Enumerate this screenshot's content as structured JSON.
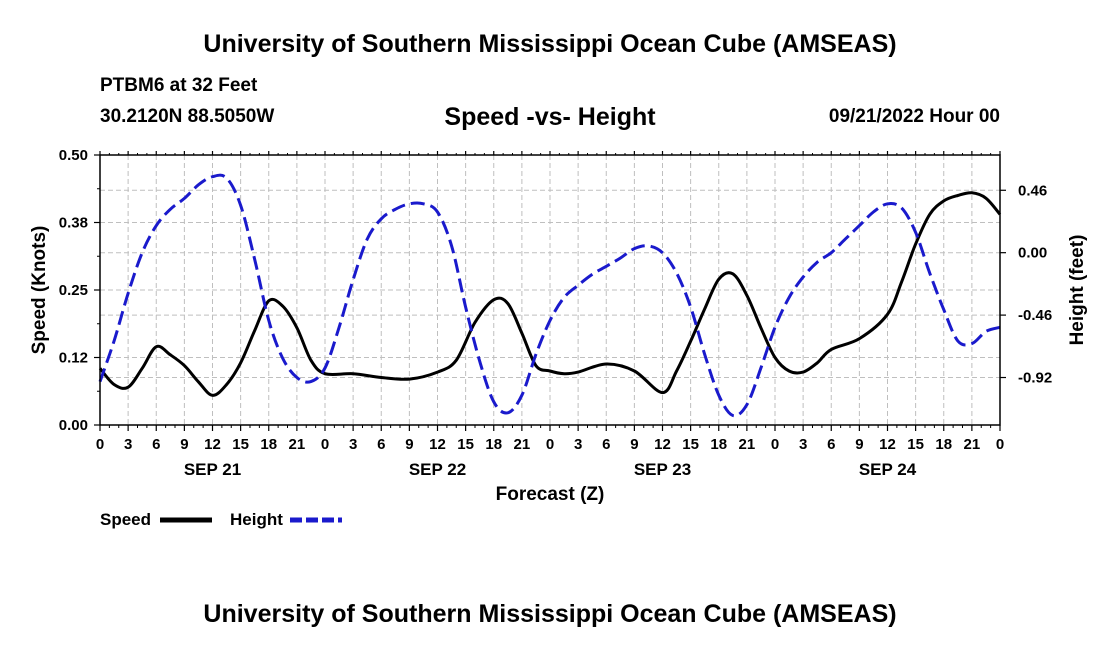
{
  "page": {
    "title_top": "University of Southern Mississippi Ocean Cube (AMSEAS)",
    "title_bottom": "University of Southern Mississippi Ocean Cube (AMSEAS)",
    "station": "PTBM6 at 32 Feet",
    "location": "30.2120N  88.5050W",
    "datetime": "09/21/2022 Hour 00"
  },
  "colors": {
    "speed": "#000000",
    "height": "#1a1acc",
    "grid": "#bfbfbf"
  },
  "chart_data": {
    "type": "line",
    "title": "Speed -vs- Height",
    "xlabel": "Forecast (Z)",
    "ylabel": "Speed (Knots)",
    "y2label": "Height (feet)",
    "x_unit": "hours since 09/21/2022 00Z",
    "xlim": [
      0,
      96
    ],
    "x_tick_step": 3,
    "x_tick_labels": [
      "0",
      "3",
      "6",
      "9",
      "12",
      "15",
      "18",
      "21",
      "0",
      "3",
      "6",
      "9",
      "12",
      "15",
      "18",
      "21",
      "0",
      "3",
      "6",
      "9",
      "12",
      "15",
      "18",
      "21",
      "0",
      "3",
      "6",
      "9",
      "12",
      "15",
      "18",
      "21",
      "0"
    ],
    "day_labels": [
      {
        "hour": 12,
        "label": "SEP 21"
      },
      {
        "hour": 36,
        "label": "SEP 22"
      },
      {
        "hour": 60,
        "label": "SEP 23"
      },
      {
        "hour": 84,
        "label": "SEP 24"
      }
    ],
    "ylim": [
      0,
      0.5
    ],
    "y_ticks": [
      0.0,
      0.125,
      0.25,
      0.375,
      0.5
    ],
    "y_tick_labels": [
      "0.00",
      "0.12",
      "0.25",
      "0.38",
      "0.50"
    ],
    "y2lim": [
      -1.27,
      0.72
    ],
    "y2_ticks": [
      0.46,
      0.0,
      -0.46,
      -0.92
    ],
    "y2_tick_labels": [
      "0.46",
      "0.00",
      "-0.46",
      "-0.92"
    ],
    "legend": [
      {
        "name": "Speed",
        "style": "solid"
      },
      {
        "name": "Height",
        "style": "dashed"
      }
    ],
    "series": [
      {
        "name": "Speed",
        "axis": "left",
        "style": "solid",
        "x": [
          0,
          1.5,
          3,
          4.5,
          6,
          7.5,
          9,
          10.5,
          12,
          13.5,
          15,
          16.5,
          18,
          19.5,
          21,
          22.5,
          24,
          27,
          30,
          33,
          36,
          38,
          40,
          42,
          43.5,
          45,
          46.5,
          48,
          49.5,
          51,
          54,
          57,
          60,
          61.5,
          63,
          64.5,
          66,
          67.5,
          69,
          70.5,
          72,
          73.5,
          75,
          76.5,
          78,
          81,
          84,
          85.5,
          87,
          88.5,
          90,
          91.5,
          93,
          94.5,
          96
        ],
        "y": [
          0.105,
          0.075,
          0.07,
          0.105,
          0.145,
          0.13,
          0.11,
          0.08,
          0.055,
          0.075,
          0.115,
          0.175,
          0.23,
          0.22,
          0.18,
          0.12,
          0.095,
          0.095,
          0.088,
          0.085,
          0.098,
          0.12,
          0.19,
          0.232,
          0.225,
          0.17,
          0.11,
          0.1,
          0.095,
          0.098,
          0.113,
          0.1,
          0.06,
          0.1,
          0.155,
          0.215,
          0.27,
          0.28,
          0.24,
          0.18,
          0.125,
          0.1,
          0.098,
          0.115,
          0.14,
          0.16,
          0.205,
          0.265,
          0.335,
          0.39,
          0.415,
          0.425,
          0.43,
          0.42,
          0.39
        ]
      },
      {
        "name": "Height",
        "axis": "right",
        "style": "dashed",
        "x": [
          0,
          1.5,
          3,
          4.5,
          6,
          7.5,
          9,
          10.5,
          12,
          13.5,
          15,
          16.5,
          18,
          19.5,
          21,
          22.5,
          24,
          25.5,
          27,
          28.5,
          30,
          31.5,
          33,
          34.5,
          36,
          37.5,
          39,
          40.5,
          42,
          43.5,
          45,
          46.5,
          48,
          49.5,
          51,
          52.5,
          54,
          55.5,
          57,
          58.5,
          60,
          61.5,
          63,
          64.5,
          66,
          67.5,
          69,
          70.5,
          72,
          73.5,
          75,
          76.5,
          78,
          79.5,
          81,
          82.5,
          84,
          85.5,
          87,
          88.5,
          90,
          91.5,
          93,
          94.5,
          96
        ],
        "y": [
          -0.95,
          -0.65,
          -0.3,
          0.0,
          0.2,
          0.32,
          0.4,
          0.5,
          0.56,
          0.55,
          0.35,
          -0.05,
          -0.5,
          -0.78,
          -0.92,
          -0.95,
          -0.85,
          -0.55,
          -0.2,
          0.1,
          0.25,
          0.32,
          0.36,
          0.36,
          0.3,
          0.05,
          -0.4,
          -0.8,
          -1.1,
          -1.18,
          -1.05,
          -0.75,
          -0.5,
          -0.33,
          -0.24,
          -0.16,
          -0.1,
          -0.04,
          0.03,
          0.05,
          0.0,
          -0.15,
          -0.4,
          -0.75,
          -1.05,
          -1.2,
          -1.12,
          -0.85,
          -0.55,
          -0.33,
          -0.18,
          -0.07,
          0.0,
          0.1,
          0.2,
          0.3,
          0.36,
          0.33,
          0.15,
          -0.15,
          -0.42,
          -0.65,
          -0.67,
          -0.58,
          -0.55
        ]
      }
    ]
  }
}
